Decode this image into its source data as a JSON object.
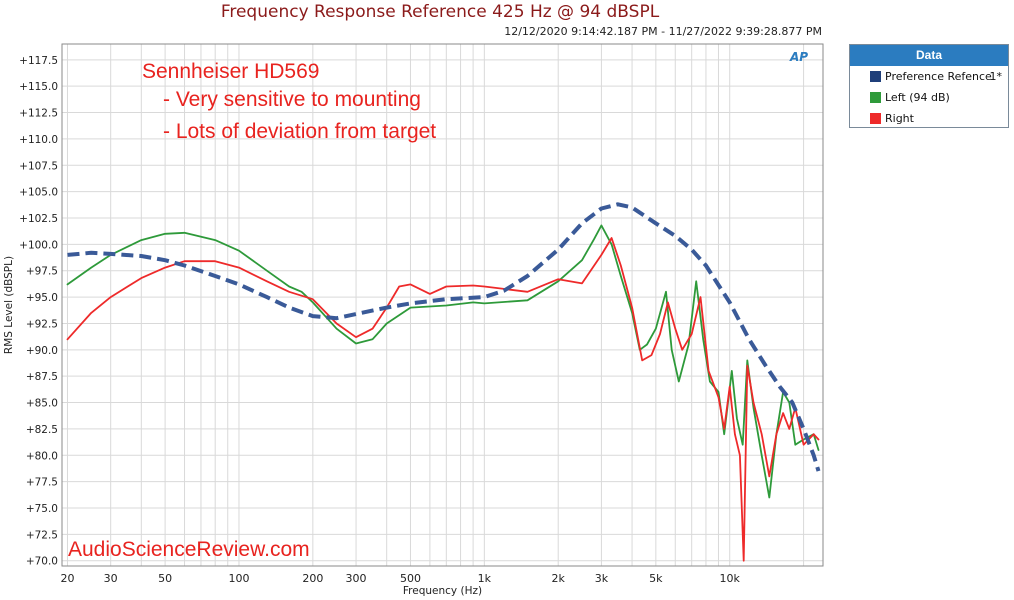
{
  "chart_data": {
    "type": "line",
    "title": "Frequency Response Reference 425 Hz @ 94 dBSPL",
    "subtitle": "12/12/2020 9:14:42.187 PM - 11/27/2022 9:39:28.877 PM",
    "xlabel": "Frequency (Hz)",
    "ylabel": "RMS Level (dBSPL)",
    "x_scale": "log",
    "xlim": [
      19,
      24000
    ],
    "ylim": [
      69.5,
      119
    ],
    "grid": true,
    "legend_placement": "right",
    "legend_title": "Data",
    "x_ticks": [
      {
        "value": 20,
        "label": "20"
      },
      {
        "value": 30,
        "label": "30"
      },
      {
        "value": 50,
        "label": "50"
      },
      {
        "value": 100,
        "label": "100"
      },
      {
        "value": 200,
        "label": "200"
      },
      {
        "value": 300,
        "label": "300"
      },
      {
        "value": 500,
        "label": "500"
      },
      {
        "value": 1000,
        "label": "1k"
      },
      {
        "value": 2000,
        "label": "2k"
      },
      {
        "value": 3000,
        "label": "3k"
      },
      {
        "value": 5000,
        "label": "5k"
      },
      {
        "value": 10000,
        "label": "10k"
      }
    ],
    "y_ticks": [
      {
        "value": 117.5,
        "label": "+117.5"
      },
      {
        "value": 115.0,
        "label": "+115.0"
      },
      {
        "value": 112.5,
        "label": "+112.5"
      },
      {
        "value": 110.0,
        "label": "+110.0"
      },
      {
        "value": 107.5,
        "label": "+107.5"
      },
      {
        "value": 105.0,
        "label": "+105.0"
      },
      {
        "value": 102.5,
        "label": "+102.5"
      },
      {
        "value": 100.0,
        "label": "+100.0"
      },
      {
        "value": 97.5,
        "label": "+97.5"
      },
      {
        "value": 95.0,
        "label": "+95.0"
      },
      {
        "value": 92.5,
        "label": "+92.5"
      },
      {
        "value": 90.0,
        "label": "+90.0"
      },
      {
        "value": 87.5,
        "label": "+87.5"
      },
      {
        "value": 85.0,
        "label": "+85.0"
      },
      {
        "value": 82.5,
        "label": "+82.5"
      },
      {
        "value": 80.0,
        "label": "+80.0"
      },
      {
        "value": 77.5,
        "label": "+77.5"
      },
      {
        "value": 75.0,
        "label": "+75.0"
      },
      {
        "value": 72.5,
        "label": "+72.5"
      },
      {
        "value": 70.0,
        "label": "+70.0"
      }
    ],
    "annotations": [
      "Sennheiser HD569",
      "- Very sensitive to mounting",
      "- Lots of deviation from target"
    ],
    "watermark": "AudioScienceReview.com",
    "series": [
      {
        "name": "Preference Refence",
        "legend_suffix": "1*",
        "color": "#3a5a98",
        "dashed": true,
        "points": [
          [
            20,
            99.0
          ],
          [
            25,
            99.2
          ],
          [
            30,
            99.1
          ],
          [
            40,
            98.9
          ],
          [
            50,
            98.5
          ],
          [
            60,
            98.0
          ],
          [
            80,
            97.0
          ],
          [
            100,
            96.2
          ],
          [
            130,
            95.0
          ],
          [
            160,
            94.0
          ],
          [
            200,
            93.2
          ],
          [
            250,
            93.0
          ],
          [
            300,
            93.4
          ],
          [
            400,
            94.0
          ],
          [
            500,
            94.4
          ],
          [
            700,
            94.8
          ],
          [
            1000,
            95.0
          ],
          [
            1200,
            95.6
          ],
          [
            1500,
            97.0
          ],
          [
            2000,
            99.5
          ],
          [
            2500,
            102.0
          ],
          [
            3000,
            103.4
          ],
          [
            3500,
            103.8
          ],
          [
            4000,
            103.5
          ],
          [
            5000,
            102.0
          ],
          [
            6000,
            100.8
          ],
          [
            7000,
            99.5
          ],
          [
            8000,
            98.0
          ],
          [
            10000,
            94.5
          ],
          [
            12000,
            91.0
          ],
          [
            14000,
            88.5
          ],
          [
            16000,
            86.5
          ],
          [
            18000,
            85.0
          ],
          [
            20000,
            82.5
          ],
          [
            22000,
            80.0
          ],
          [
            23000,
            78.5
          ]
        ]
      },
      {
        "name": "Left (94 dB)",
        "legend_suffix": "",
        "color": "#2e9a3a",
        "dashed": false,
        "points": [
          [
            20,
            96.2
          ],
          [
            25,
            97.8
          ],
          [
            30,
            99.0
          ],
          [
            40,
            100.4
          ],
          [
            50,
            101.0
          ],
          [
            60,
            101.1
          ],
          [
            80,
            100.4
          ],
          [
            100,
            99.4
          ],
          [
            130,
            97.5
          ],
          [
            160,
            96.0
          ],
          [
            180,
            95.5
          ],
          [
            200,
            94.5
          ],
          [
            250,
            92.0
          ],
          [
            300,
            90.6
          ],
          [
            350,
            91.0
          ],
          [
            400,
            92.5
          ],
          [
            500,
            94.0
          ],
          [
            700,
            94.2
          ],
          [
            900,
            94.5
          ],
          [
            1000,
            94.4
          ],
          [
            1500,
            94.7
          ],
          [
            2000,
            96.5
          ],
          [
            2500,
            98.5
          ],
          [
            2800,
            100.5
          ],
          [
            3000,
            101.8
          ],
          [
            3300,
            100.0
          ],
          [
            3600,
            97.0
          ],
          [
            4000,
            93.5
          ],
          [
            4300,
            90.0
          ],
          [
            4600,
            90.5
          ],
          [
            5000,
            92.0
          ],
          [
            5500,
            95.5
          ],
          [
            5800,
            90.0
          ],
          [
            6200,
            87.0
          ],
          [
            6800,
            90.5
          ],
          [
            7300,
            96.5
          ],
          [
            7800,
            91.0
          ],
          [
            8300,
            87.0
          ],
          [
            9000,
            86.0
          ],
          [
            9500,
            82.0
          ],
          [
            10200,
            88.0
          ],
          [
            10700,
            83.5
          ],
          [
            11300,
            81.0
          ],
          [
            11800,
            89.0
          ],
          [
            12500,
            84.5
          ],
          [
            13500,
            80.0
          ],
          [
            14500,
            76.0
          ],
          [
            15500,
            82.0
          ],
          [
            16500,
            86.0
          ],
          [
            17500,
            85.0
          ],
          [
            18500,
            81.0
          ],
          [
            20000,
            81.5
          ],
          [
            22000,
            82.0
          ],
          [
            23000,
            80.5
          ]
        ]
      },
      {
        "name": "Right",
        "legend_suffix": "",
        "color": "#ee2a2a",
        "dashed": false,
        "points": [
          [
            20,
            91.0
          ],
          [
            25,
            93.5
          ],
          [
            30,
            95.0
          ],
          [
            40,
            96.8
          ],
          [
            50,
            97.8
          ],
          [
            60,
            98.4
          ],
          [
            80,
            98.4
          ],
          [
            100,
            97.8
          ],
          [
            130,
            96.5
          ],
          [
            160,
            95.5
          ],
          [
            200,
            94.8
          ],
          [
            250,
            92.5
          ],
          [
            300,
            91.2
          ],
          [
            350,
            92.0
          ],
          [
            400,
            94.0
          ],
          [
            450,
            96.0
          ],
          [
            500,
            96.2
          ],
          [
            600,
            95.3
          ],
          [
            700,
            96.0
          ],
          [
            900,
            96.1
          ],
          [
            1000,
            96.0
          ],
          [
            1500,
            95.5
          ],
          [
            2000,
            96.7
          ],
          [
            2500,
            96.3
          ],
          [
            3000,
            99.0
          ],
          [
            3300,
            100.6
          ],
          [
            3600,
            98.0
          ],
          [
            4000,
            94.0
          ],
          [
            4400,
            89.0
          ],
          [
            4800,
            89.5
          ],
          [
            5200,
            91.5
          ],
          [
            5600,
            94.5
          ],
          [
            6000,
            92.0
          ],
          [
            6400,
            90.0
          ],
          [
            7000,
            91.5
          ],
          [
            7600,
            95.0
          ],
          [
            8200,
            88.0
          ],
          [
            9000,
            85.5
          ],
          [
            9500,
            82.5
          ],
          [
            10000,
            86.5
          ],
          [
            10500,
            82.0
          ],
          [
            11000,
            80.0
          ],
          [
            11400,
            70.0
          ],
          [
            11800,
            88.5
          ],
          [
            12500,
            85.0
          ],
          [
            13500,
            82.0
          ],
          [
            14500,
            78.0
          ],
          [
            15500,
            82.0
          ],
          [
            16500,
            84.0
          ],
          [
            17500,
            82.5
          ],
          [
            18500,
            84.5
          ],
          [
            20000,
            81.0
          ],
          [
            22000,
            82.0
          ],
          [
            23000,
            81.5
          ]
        ]
      }
    ]
  }
}
